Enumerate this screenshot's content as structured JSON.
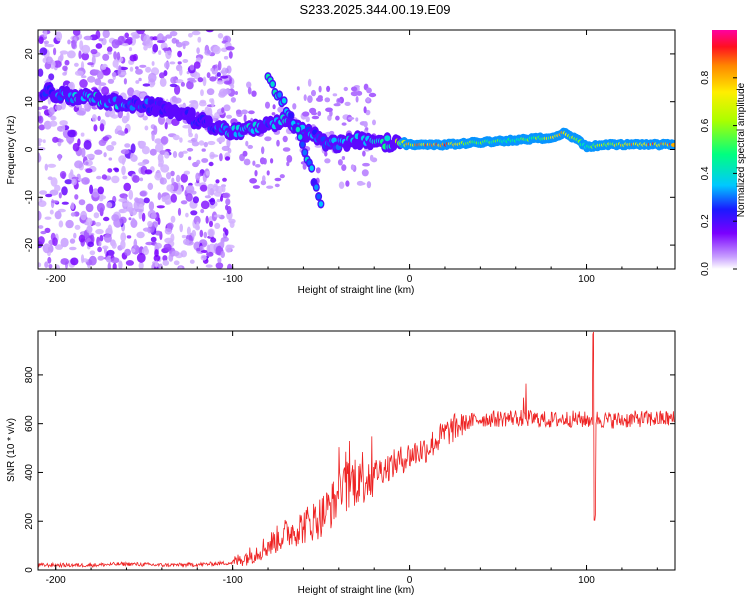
{
  "title": "S233.2025.344.00.19.E09",
  "chart_data": [
    {
      "type": "heatmap",
      "name": "spectrogram",
      "xlabel": "Height of straight line (km)",
      "ylabel": "Frequency (Hz)",
      "xlim": [
        -210,
        150
      ],
      "ylim": [
        -25,
        25
      ],
      "xticks": [
        -200,
        -100,
        0,
        100
      ],
      "yticks": [
        -20,
        -10,
        0,
        10,
        20
      ],
      "colorbar": {
        "label": "Normalized spectral amplitude",
        "range": [
          0.0,
          1.0
        ],
        "ticks": [
          0.0,
          0.2,
          0.4,
          0.6,
          0.8
        ]
      },
      "ridge": {
        "x": [
          -205,
          -190,
          -175,
          -160,
          -145,
          -130,
          -120,
          -110,
          -100,
          -90,
          -80,
          -70,
          -60,
          -50,
          -40,
          -30,
          -20,
          -10,
          0,
          20,
          40,
          60,
          80,
          88,
          95,
          100,
          110,
          130,
          150
        ],
        "frequency": [
          12,
          11,
          10.5,
          9.5,
          9,
          8,
          6,
          5,
          4,
          4,
          5,
          6,
          4,
          2,
          1,
          2,
          1,
          1.5,
          1,
          1,
          1.5,
          2,
          2.5,
          3.5,
          2,
          0.5,
          1,
          1,
          1
        ],
        "amplitude": [
          0.3,
          0.4,
          0.45,
          0.35,
          0.3,
          0.2,
          0.3,
          0.3,
          0.45,
          0.45,
          0.35,
          0.5,
          0.35,
          0.35,
          0.4,
          0.45,
          0.4,
          0.55,
          0.9,
          0.95,
          0.6,
          0.55,
          0.75,
          0.9,
          0.6,
          0.5,
          0.75,
          0.95,
          0.9
        ]
      },
      "branch": {
        "x": [
          -80,
          -75,
          -70,
          -65,
          -60,
          -55,
          -50
        ],
        "frequency": [
          15,
          12,
          9,
          5,
          1,
          -5,
          -12
        ]
      }
    },
    {
      "type": "line",
      "name": "snr",
      "xlabel": "Height of straight line (km)",
      "ylabel": "SNR (10 * v/v)",
      "xlim": [
        -210,
        150
      ],
      "ylim": [
        0,
        980
      ],
      "xticks": [
        -200,
        -100,
        0,
        100
      ],
      "yticks": [
        0,
        200,
        400,
        600,
        800
      ],
      "color": "#ee2222",
      "x": [
        -210,
        -180,
        -160,
        -140,
        -120,
        -100,
        -90,
        -80,
        -70,
        -60,
        -50,
        -40,
        -30,
        -20,
        -10,
        0,
        10,
        20,
        30,
        40,
        50,
        60,
        70,
        80,
        90,
        100,
        104,
        106,
        110,
        120,
        130,
        140,
        150
      ],
      "y": [
        20,
        20,
        25,
        20,
        22,
        30,
        60,
        100,
        150,
        180,
        220,
        300,
        380,
        400,
        430,
        470,
        500,
        560,
        600,
        620,
        620,
        625,
        620,
        615,
        620,
        615,
        620,
        620,
        615,
        615,
        620,
        620,
        620
      ]
    }
  ]
}
